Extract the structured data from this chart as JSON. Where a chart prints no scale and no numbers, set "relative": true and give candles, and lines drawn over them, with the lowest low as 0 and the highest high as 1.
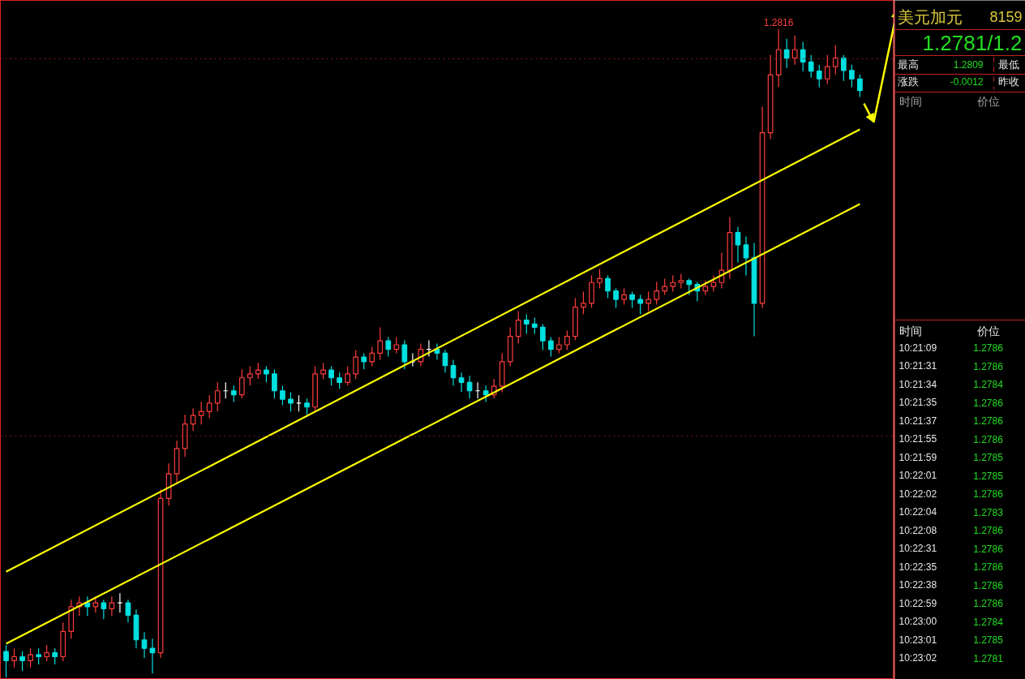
{
  "chart_data": {
    "type": "candlestick",
    "relative": true,
    "grid": false,
    "categories": [
      null,
      null,
      null,
      null,
      null,
      null,
      null,
      null,
      null,
      null,
      null,
      null,
      null,
      null,
      null,
      null,
      null,
      null,
      null,
      null,
      null,
      null,
      null,
      null,
      null,
      null,
      null,
      null,
      null,
      null,
      null,
      null,
      null,
      null,
      null,
      null,
      null,
      null,
      null,
      null,
      null,
      null,
      null,
      null,
      null,
      null,
      null,
      null,
      null,
      null,
      null,
      null,
      null,
      null,
      null,
      null,
      null,
      null,
      null,
      null,
      null,
      null,
      null,
      null,
      null,
      null,
      null,
      null,
      null,
      null,
      null,
      null,
      null,
      null,
      null,
      null,
      null,
      null,
      null,
      null,
      null,
      null,
      null,
      null,
      null,
      null,
      null,
      null,
      null,
      null,
      null,
      null,
      null,
      null,
      null,
      null,
      null,
      null,
      null,
      null,
      null,
      null,
      null,
      null,
      null,
      null
    ],
    "ohlc": [
      [
        0.04,
        0.05,
        0.0,
        0.026
      ],
      [
        0.026,
        0.045,
        0.015,
        0.032
      ],
      [
        0.032,
        0.04,
        0.01,
        0.026
      ],
      [
        0.026,
        0.045,
        0.015,
        0.035
      ],
      [
        0.035,
        0.045,
        0.02,
        0.032
      ],
      [
        0.032,
        0.05,
        0.025,
        0.038
      ],
      [
        0.038,
        0.045,
        0.02,
        0.032
      ],
      [
        0.032,
        0.085,
        0.025,
        0.071
      ],
      [
        0.071,
        0.12,
        0.06,
        0.109
      ],
      [
        0.109,
        0.125,
        0.095,
        0.115
      ],
      [
        0.115,
        0.125,
        0.095,
        0.109
      ],
      [
        0.109,
        0.125,
        0.1,
        0.115
      ],
      [
        0.115,
        0.12,
        0.09,
        0.106
      ],
      [
        0.106,
        0.125,
        0.095,
        0.115
      ],
      [
        0.115,
        0.13,
        0.1,
        0.115
      ],
      [
        0.115,
        0.12,
        0.085,
        0.096
      ],
      [
        0.096,
        0.105,
        0.045,
        0.058
      ],
      [
        0.058,
        0.07,
        0.03,
        0.045
      ],
      [
        0.045,
        0.06,
        0.006,
        0.038
      ],
      [
        0.038,
        0.29,
        0.03,
        0.276
      ],
      [
        0.276,
        0.33,
        0.265,
        0.314
      ],
      [
        0.314,
        0.365,
        0.3,
        0.353
      ],
      [
        0.353,
        0.405,
        0.34,
        0.391
      ],
      [
        0.391,
        0.415,
        0.38,
        0.404
      ],
      [
        0.404,
        0.425,
        0.39,
        0.41
      ],
      [
        0.41,
        0.435,
        0.4,
        0.423
      ],
      [
        0.423,
        0.455,
        0.41,
        0.442
      ],
      [
        0.442,
        0.455,
        0.43,
        0.442
      ],
      [
        0.442,
        0.45,
        0.425,
        0.436
      ],
      [
        0.436,
        0.475,
        0.43,
        0.462
      ],
      [
        0.462,
        0.48,
        0.45,
        0.468
      ],
      [
        0.468,
        0.485,
        0.46,
        0.474
      ],
      [
        0.474,
        0.48,
        0.455,
        0.468
      ],
      [
        0.468,
        0.475,
        0.43,
        0.442
      ],
      [
        0.442,
        0.45,
        0.42,
        0.429
      ],
      [
        0.429,
        0.44,
        0.41,
        0.423
      ],
      [
        0.423,
        0.435,
        0.41,
        0.423
      ],
      [
        0.423,
        0.43,
        0.405,
        0.417
      ],
      [
        0.417,
        0.48,
        0.41,
        0.468
      ],
      [
        0.468,
        0.485,
        0.46,
        0.474
      ],
      [
        0.474,
        0.48,
        0.45,
        0.462
      ],
      [
        0.462,
        0.47,
        0.445,
        0.455
      ],
      [
        0.455,
        0.48,
        0.45,
        0.468
      ],
      [
        0.468,
        0.505,
        0.46,
        0.494
      ],
      [
        0.494,
        0.5,
        0.475,
        0.487
      ],
      [
        0.487,
        0.51,
        0.48,
        0.5
      ],
      [
        0.5,
        0.54,
        0.49,
        0.519
      ],
      [
        0.519,
        0.525,
        0.495,
        0.506
      ],
      [
        0.506,
        0.525,
        0.5,
        0.513
      ],
      [
        0.513,
        0.52,
        0.475,
        0.487
      ],
      [
        0.487,
        0.5,
        0.48,
        0.487
      ],
      [
        0.487,
        0.515,
        0.48,
        0.506
      ],
      [
        0.506,
        0.52,
        0.495,
        0.506
      ],
      [
        0.506,
        0.515,
        0.49,
        0.5
      ],
      [
        0.5,
        0.505,
        0.47,
        0.481
      ],
      [
        0.481,
        0.49,
        0.45,
        0.462
      ],
      [
        0.462,
        0.47,
        0.44,
        0.455
      ],
      [
        0.455,
        0.465,
        0.43,
        0.442
      ],
      [
        0.442,
        0.455,
        0.43,
        0.442
      ],
      [
        0.442,
        0.45,
        0.425,
        0.436
      ],
      [
        0.436,
        0.46,
        0.43,
        0.449
      ],
      [
        0.449,
        0.5,
        0.44,
        0.487
      ],
      [
        0.487,
        0.54,
        0.48,
        0.526
      ],
      [
        0.526,
        0.565,
        0.515,
        0.551
      ],
      [
        0.551,
        0.56,
        0.53,
        0.545
      ],
      [
        0.545,
        0.555,
        0.53,
        0.54
      ],
      [
        0.54,
        0.545,
        0.505,
        0.519
      ],
      [
        0.519,
        0.525,
        0.495,
        0.506
      ],
      [
        0.506,
        0.525,
        0.5,
        0.513
      ],
      [
        0.513,
        0.535,
        0.505,
        0.526
      ],
      [
        0.526,
        0.585,
        0.52,
        0.571
      ],
      [
        0.571,
        0.595,
        0.56,
        0.577
      ],
      [
        0.577,
        0.62,
        0.57,
        0.609
      ],
      [
        0.609,
        0.63,
        0.6,
        0.615
      ],
      [
        0.615,
        0.62,
        0.585,
        0.596
      ],
      [
        0.596,
        0.6,
        0.57,
        0.583
      ],
      [
        0.583,
        0.6,
        0.575,
        0.59
      ],
      [
        0.59,
        0.595,
        0.57,
        0.583
      ],
      [
        0.583,
        0.59,
        0.56,
        0.577
      ],
      [
        0.577,
        0.595,
        0.565,
        0.583
      ],
      [
        0.583,
        0.61,
        0.575,
        0.596
      ],
      [
        0.596,
        0.615,
        0.59,
        0.603
      ],
      [
        0.603,
        0.62,
        0.595,
        0.609
      ],
      [
        0.609,
        0.622,
        0.6,
        0.612
      ],
      [
        0.612,
        0.615,
        0.59,
        0.606
      ],
      [
        0.606,
        0.61,
        0.58,
        0.596
      ],
      [
        0.596,
        0.612,
        0.59,
        0.603
      ],
      [
        0.603,
        0.62,
        0.595,
        0.609
      ],
      [
        0.609,
        0.655,
        0.6,
        0.628
      ],
      [
        0.628,
        0.71,
        0.615,
        0.686
      ],
      [
        0.686,
        0.695,
        0.64,
        0.667
      ],
      [
        0.667,
        0.68,
        0.62,
        0.647
      ],
      [
        0.647,
        0.67,
        0.526,
        0.577
      ],
      [
        0.577,
        0.88,
        0.57,
        0.84
      ],
      [
        0.84,
        0.96,
        0.83,
        0.929
      ],
      [
        0.929,
        1.0,
        0.91,
        0.968
      ],
      [
        0.968,
        0.985,
        0.94,
        0.955
      ],
      [
        0.955,
        0.99,
        0.945,
        0.968
      ],
      [
        0.968,
        0.98,
        0.935,
        0.949
      ],
      [
        0.949,
        0.96,
        0.925,
        0.935
      ],
      [
        0.935,
        0.945,
        0.91,
        0.923
      ],
      [
        0.923,
        0.96,
        0.915,
        0.942
      ],
      [
        0.942,
        0.975,
        0.93,
        0.955
      ],
      [
        0.955,
        0.96,
        0.92,
        0.936
      ],
      [
        0.936,
        0.945,
        0.91,
        0.923
      ],
      [
        0.923,
        0.93,
        0.895,
        0.905
      ]
    ],
    "series": [
      {
        "type": "line",
        "color": "#ffff00",
        "values": [
          0.163,
          null,
          null,
          null,
          null,
          null,
          null,
          null,
          null,
          null,
          null,
          null,
          null,
          null,
          null,
          null,
          null,
          null,
          null,
          null,
          null,
          null,
          null,
          null,
          null,
          null,
          null,
          null,
          null,
          null,
          null,
          null,
          null,
          null,
          null,
          null,
          null,
          null,
          null,
          null,
          null,
          null,
          null,
          null,
          null,
          null,
          null,
          null,
          null,
          null,
          null,
          null,
          null,
          null,
          null,
          null,
          null,
          null,
          null,
          null,
          null,
          null,
          null,
          null,
          null,
          null,
          null,
          null,
          null,
          null,
          null,
          null,
          null,
          null,
          null,
          null,
          null,
          null,
          null,
          null,
          null,
          null,
          null,
          null,
          null,
          null,
          null,
          null,
          null,
          null,
          null,
          null,
          null,
          null,
          null,
          null,
          null,
          null,
          null,
          null,
          null,
          null,
          null,
          null,
          null,
          0.845
        ]
      },
      {
        "type": "line",
        "color": "#ffff00",
        "values": [
          0.052,
          null,
          null,
          null,
          null,
          null,
          null,
          null,
          null,
          null,
          null,
          null,
          null,
          null,
          null,
          null,
          null,
          null,
          null,
          null,
          null,
          null,
          null,
          null,
          null,
          null,
          null,
          null,
          null,
          null,
          null,
          null,
          null,
          null,
          null,
          null,
          null,
          null,
          null,
          null,
          null,
          null,
          null,
          null,
          null,
          null,
          null,
          null,
          null,
          null,
          null,
          null,
          null,
          null,
          null,
          null,
          null,
          null,
          null,
          null,
          null,
          null,
          null,
          null,
          null,
          null,
          null,
          null,
          null,
          null,
          null,
          null,
          null,
          null,
          null,
          null,
          null,
          null,
          null,
          null,
          null,
          null,
          null,
          null,
          null,
          null,
          null,
          null,
          null,
          null,
          null,
          null,
          null,
          null,
          null,
          null,
          null,
          null,
          null,
          null,
          null,
          null,
          null,
          null,
          null,
          0.73
        ]
      }
    ],
    "ref_lines": [
      {
        "axis": "y",
        "value": 0.954,
        "color": "#8b1a1a",
        "line_style": "dotted"
      },
      {
        "axis": "y",
        "value": 0.372,
        "color": "#8b1a1a",
        "line_style": "dotted"
      }
    ],
    "annotations": [
      {
        "text": "1.2816",
        "y": 1.0
      },
      "美元加元",
      "8159",
      "1.2781/1.2",
      "最高",
      "1.2809",
      "最低",
      "涨跌",
      "-0.0012",
      "昨收",
      "时间",
      "价位",
      "时间",
      "价位",
      "10:21:09",
      "1.2786",
      "10:21:31",
      "1.2786",
      "10:21:34",
      "1.2784",
      "10:21:35",
      "1.2786",
      "10:21:37",
      "1.2786",
      "10:21:55",
      "1.2786",
      "10:21:59",
      "1.2785",
      "10:22:01",
      "1.2785",
      "10:22:02",
      "1.2786",
      "10:22:04",
      "1.2783",
      "10:22:08",
      "1.2786",
      "10:22:31",
      "1.2786",
      "10:22:35",
      "1.2786",
      "10:22:38",
      "1.2786",
      "10:22:59",
      "1.2786",
      "10:23:00",
      "1.2784",
      "10:23:01",
      "1.2785",
      "10:23:02",
      "1.2781"
    ]
  }
}
